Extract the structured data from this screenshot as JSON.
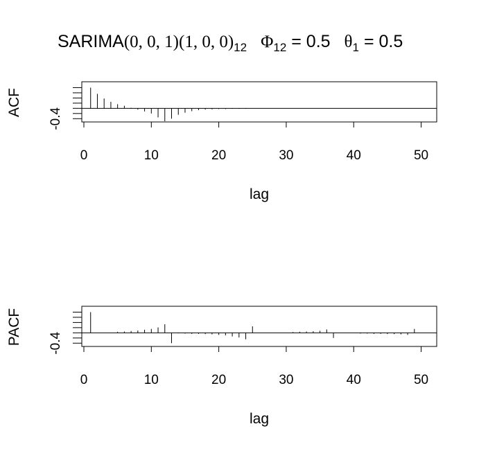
{
  "title": {
    "model": "SARIMA",
    "order": "(0, 0, 1)(1, 0, 0)",
    "season": "12",
    "phi_symbol": "Φ",
    "phi_sub": "12",
    "phi_eq": " = 0.5",
    "theta_symbol": "θ",
    "theta_sub": "1",
    "theta_eq": " = 0.5"
  },
  "chart_data": [
    {
      "type": "bar",
      "ylabel": "ACF",
      "xlabel": "lag",
      "y_tick_label": "-0.4",
      "ylim": [
        -0.5,
        1.0
      ],
      "xlim": [
        0,
        52
      ],
      "x_ticks": [
        "0",
        "10",
        "20",
        "30",
        "40",
        "50"
      ],
      "x_tick_values": [
        0,
        10,
        20,
        30,
        40,
        50
      ],
      "lags": [
        1,
        2,
        3,
        4,
        5,
        6,
        7,
        8,
        9,
        10,
        11,
        12,
        13,
        14,
        15,
        16,
        17,
        18,
        19,
        20,
        21,
        22,
        23,
        24
      ],
      "values": [
        0.8,
        0.56,
        0.38,
        0.25,
        0.16,
        0.1,
        0.02,
        -0.05,
        -0.12,
        -0.2,
        -0.35,
        -0.5,
        -0.4,
        -0.25,
        -0.17,
        -0.11,
        -0.07,
        -0.05,
        -0.04,
        -0.03,
        -0.03,
        -0.02,
        -0.02,
        -0.02
      ]
    },
    {
      "type": "bar",
      "ylabel": "PACF",
      "xlabel": "lag",
      "y_tick_label": "-0.4",
      "ylim": [
        -0.5,
        1.0
      ],
      "xlim": [
        0,
        52
      ],
      "x_ticks": [
        "0",
        "10",
        "20",
        "30",
        "40",
        "50"
      ],
      "x_tick_values": [
        0,
        10,
        20,
        30,
        40,
        50
      ],
      "lags": [
        1,
        2,
        3,
        4,
        5,
        6,
        7,
        8,
        9,
        10,
        11,
        12,
        13,
        14,
        15,
        16,
        17,
        18,
        19,
        20,
        21,
        22,
        23,
        24,
        25,
        26,
        27,
        28,
        29,
        30,
        31,
        32,
        33,
        34,
        35,
        36,
        37,
        38,
        39,
        40,
        41,
        42,
        43,
        44,
        45,
        46,
        47,
        48,
        49
      ],
      "values": [
        0.8,
        0.0,
        0.0,
        0.0,
        0.04,
        0.05,
        0.07,
        0.09,
        0.12,
        0.15,
        0.21,
        0.33,
        -0.4,
        -0.02,
        -0.03,
        -0.04,
        -0.04,
        -0.05,
        -0.06,
        -0.08,
        -0.1,
        -0.14,
        -0.18,
        -0.25,
        0.25,
        0.0,
        0.0,
        0.0,
        0.0,
        0.0,
        0.03,
        0.04,
        0.05,
        0.06,
        0.08,
        0.13,
        -0.2,
        0.0,
        0.0,
        0.0,
        -0.03,
        -0.03,
        -0.04,
        -0.04,
        -0.05,
        -0.05,
        -0.06,
        -0.08,
        0.15
      ]
    }
  ]
}
